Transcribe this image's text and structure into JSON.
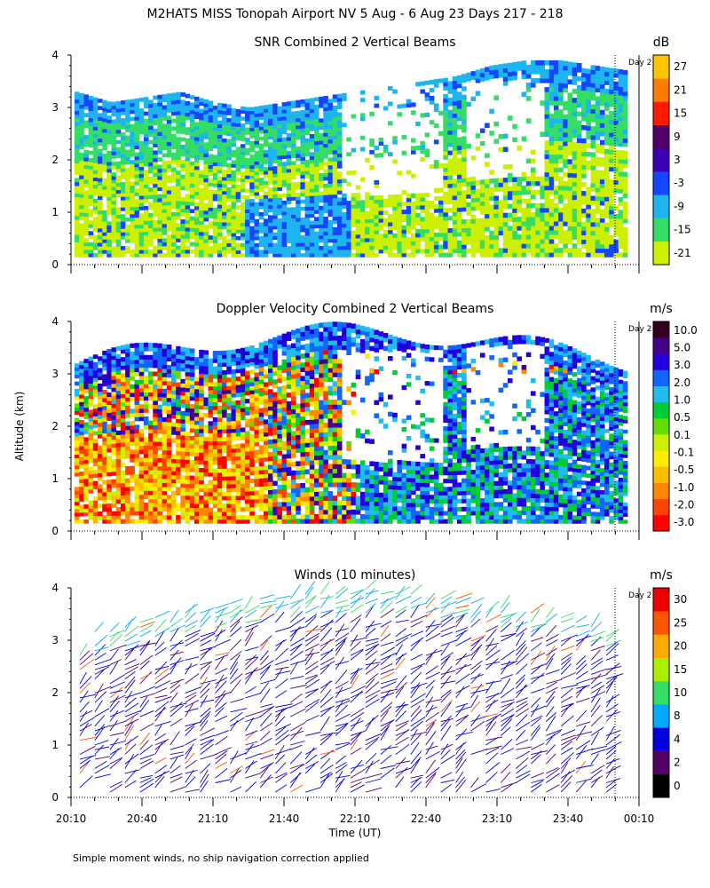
{
  "title": "M2HATS MISS Tonopah Airport NV   5 Aug -  6 Aug 23 Days 217 - 218",
  "footnote": "Simple moment winds, no ship navigation correction applied",
  "ylabel": "Altitude (km)",
  "xlabel": "Time (UT)",
  "day_marker": "Day 2",
  "chart_data": [
    {
      "type": "heatmap",
      "id": "snr",
      "title": "SNR Combined 2 Vertical Beams",
      "units": "dB",
      "ylim": [
        0,
        4
      ],
      "yticks": [
        "0",
        "1",
        "2",
        "3",
        "4"
      ],
      "colorbar_labels": [
        "27",
        "21",
        "15",
        "9",
        "3",
        "-3",
        "-9",
        "-15",
        "-21"
      ],
      "colors": [
        "#ccf000",
        "#33dd66",
        "#1eb4f0",
        "#1446ff",
        "#3a00b4",
        "#52006a",
        "#ff1a00",
        "#ff7a00",
        "#ffc400"
      ],
      "echo_top_km": [
        3.3,
        3.1,
        3.2,
        3.3,
        3.1,
        3.0,
        3.1,
        3.2,
        3.3,
        3.4,
        3.5,
        3.6,
        3.8,
        3.9,
        3.9,
        3.8,
        3.7
      ]
    },
    {
      "type": "heatmap",
      "id": "doppler",
      "title": "Doppler Velocity Combined 2 Vertical Beams",
      "units": "m/s",
      "ylim": [
        0,
        4
      ],
      "yticks": [
        "0",
        "1",
        "2",
        "3",
        "4"
      ],
      "colorbar_labels": [
        "10.0",
        "5.0",
        "3.0",
        "2.0",
        "1.0",
        "0.5",
        "0.1",
        "-0.1",
        "-0.5",
        "-1.0",
        "-2.0",
        "-3.0"
      ],
      "colors": [
        "#ff0000",
        "#ff4400",
        "#ff8800",
        "#ffbb00",
        "#ffee00",
        "#ccf000",
        "#66dd00",
        "#00cc33",
        "#22bbee",
        "#1166ff",
        "#2200dd",
        "#440088",
        "#330022"
      ]
    },
    {
      "type": "barbs",
      "id": "winds",
      "title": "Winds (10 minutes)",
      "units": "m/s",
      "ylim": [
        0,
        4
      ],
      "yticks": [
        "0",
        "1",
        "2",
        "3",
        "4"
      ],
      "colorbar_labels": [
        "30",
        "25",
        "20",
        "15",
        "10",
        "8",
        "4",
        "2",
        "0"
      ],
      "colors": [
        "#000000",
        "#550066",
        "#0000dd",
        "#00aaff",
        "#33dd66",
        "#aaee00",
        "#ffaa00",
        "#ff5500",
        "#ee0000"
      ]
    }
  ],
  "x_axis": {
    "ticks": [
      "20:10",
      "20:40",
      "21:10",
      "21:40",
      "22:10",
      "22:40",
      "23:10",
      "23:40",
      "00:10"
    ]
  }
}
